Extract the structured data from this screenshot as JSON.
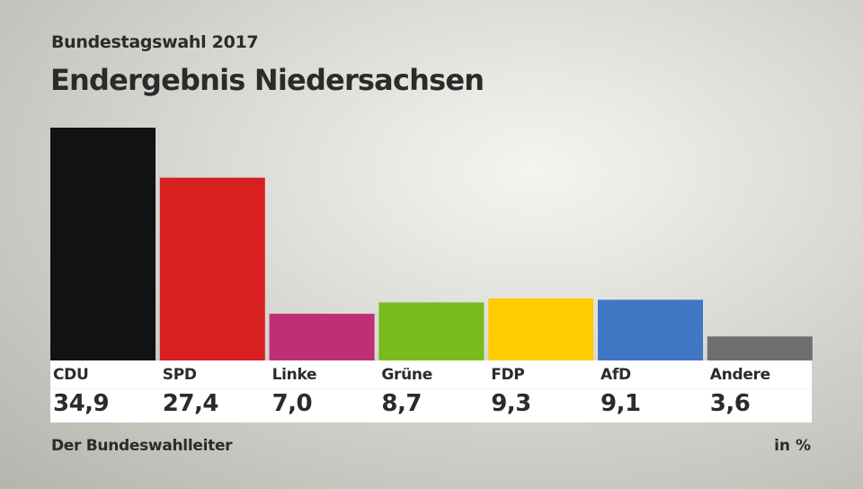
{
  "header": {
    "supertitle": "Bundestagswahl 2017",
    "title": "Endergebnis Niedersachsen"
  },
  "footer": {
    "source": "Der Bundeswahlleiter",
    "unit": "in %"
  },
  "chart_data": {
    "type": "bar",
    "title": "Endergebnis Niedersachsen",
    "categories": [
      "CDU",
      "SPD",
      "Linke",
      "Grüne",
      "FDP",
      "AfD",
      "Andere"
    ],
    "values": [
      34.9,
      27.4,
      7.0,
      8.7,
      9.3,
      9.1,
      3.6
    ],
    "value_labels": [
      "34,9",
      "27,4",
      "7,0",
      "8,7",
      "9,3",
      "9,1",
      "3,6"
    ],
    "colors": [
      "#121212",
      "#d7201f",
      "#be3075",
      "#78bc1b",
      "#ffcc00",
      "#4076c4",
      "#6f6f72"
    ],
    "unit": "in %",
    "grid": false,
    "ylim": [
      0,
      34.9
    ]
  }
}
